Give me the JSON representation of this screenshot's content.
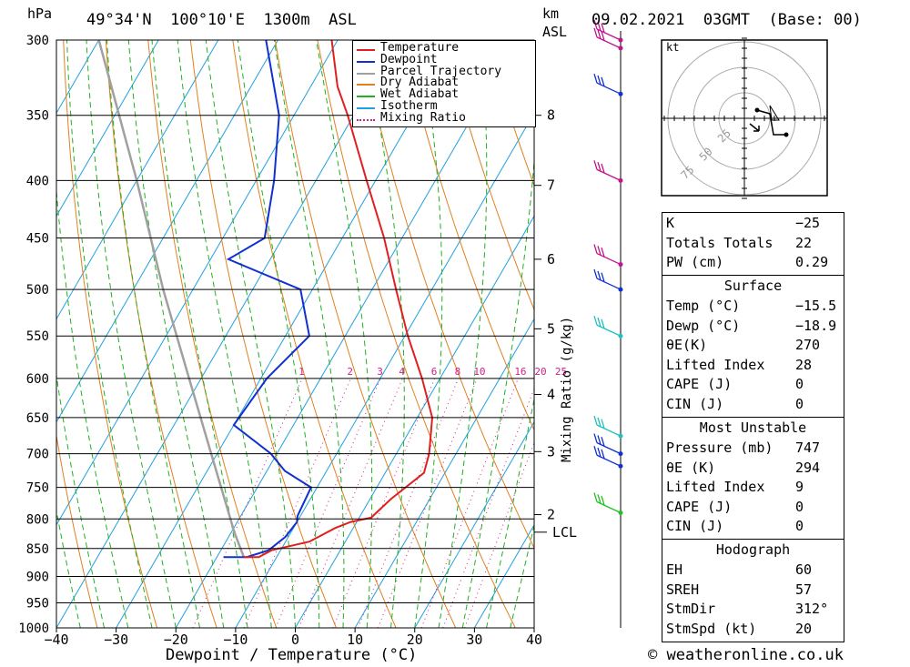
{
  "header": {
    "pressure_unit": "hPa",
    "location": "49°34'N  100°10'E  1300m  ASL",
    "km_label": "km",
    "asl_label": "ASL",
    "datetime": "09.02.2021  03GMT  (Base: 00)"
  },
  "footer": {
    "copyright": "© weatheronline.co.uk"
  },
  "colors": {
    "temperature": "#e02020",
    "dewpoint": "#1030d0",
    "parcel": "#a0a0a0",
    "dry_adiabat": "#e08020",
    "wet_adiabat": "#20b020",
    "isotherm": "#20a0e0",
    "mixing_ratio": "#d0208a",
    "wind_magenta": "#c0148c",
    "wind_blue": "#1030d0",
    "wind_cyan": "#20c0c0",
    "wind_green": "#20c020"
  },
  "chart_data": {
    "type": "skew-t",
    "xlabel": "Dewpoint / Temperature (°C)",
    "mixing_ratio_axis_label": "Mixing Ratio (g/kg)",
    "x_ticks": [
      -40,
      -30,
      -20,
      -10,
      0,
      10,
      20,
      30,
      40
    ],
    "xlim": [
      -40,
      40
    ],
    "pressure_levels": [
      300,
      350,
      400,
      450,
      500,
      550,
      600,
      650,
      700,
      750,
      800,
      850,
      900,
      950,
      1000
    ],
    "height_km_ticks": [
      {
        "km": "8",
        "p": 350
      },
      {
        "km": "7",
        "p": 404
      },
      {
        "km": "6",
        "p": 470
      },
      {
        "km": "5",
        "p": 542
      },
      {
        "km": "4",
        "p": 620
      },
      {
        "km": "3",
        "p": 697
      },
      {
        "km": "2",
        "p": 793
      }
    ],
    "lcl_label": "LCL",
    "lcl_pressure": 822,
    "mixing_ratio_labels": [
      "1",
      "2",
      "3",
      "4",
      "6",
      "8",
      "10",
      "16",
      "20",
      "25"
    ],
    "mixing_ratio_values": [
      1,
      2,
      3,
      4,
      6,
      8,
      10,
      16,
      20,
      25
    ],
    "legend": [
      "Temperature",
      "Dewpoint",
      "Parcel Trajectory",
      "Dry Adiabat",
      "Wet Adiabat",
      "Isotherm",
      "Mixing Ratio"
    ],
    "temperature_profile": [
      {
        "p": 865,
        "t": -15.5
      },
      {
        "p": 865,
        "t": -13.0
      },
      {
        "p": 853,
        "t": -11.5
      },
      {
        "p": 838,
        "t": -6.0
      },
      {
        "p": 815,
        "t": -3.0
      },
      {
        "p": 805,
        "t": -1.0
      },
      {
        "p": 798,
        "t": 2.0
      },
      {
        "p": 768,
        "t": 3.5
      },
      {
        "p": 728,
        "t": 6.5
      },
      {
        "p": 700,
        "t": 5.5
      },
      {
        "p": 650,
        "t": 2.5
      },
      {
        "p": 600,
        "t": -3.0
      },
      {
        "p": 550,
        "t": -9.5
      },
      {
        "p": 500,
        "t": -16.0
      },
      {
        "p": 450,
        "t": -23.0
      },
      {
        "p": 400,
        "t": -31.5
      },
      {
        "p": 350,
        "t": -41.0
      },
      {
        "p": 330,
        "t": -45.5
      },
      {
        "p": 300,
        "t": -51.0
      }
    ],
    "dewpoint_profile": [
      {
        "p": 865,
        "t": -18.9
      },
      {
        "p": 865,
        "t": -15.0
      },
      {
        "p": 853,
        "t": -12.0
      },
      {
        "p": 830,
        "t": -10.5
      },
      {
        "p": 805,
        "t": -10.0
      },
      {
        "p": 795,
        "t": -10.5
      },
      {
        "p": 750,
        "t": -11.0
      },
      {
        "p": 725,
        "t": -17.0
      },
      {
        "p": 700,
        "t": -21.0
      },
      {
        "p": 660,
        "t": -30.0
      },
      {
        "p": 600,
        "t": -29.0
      },
      {
        "p": 550,
        "t": -26.0
      },
      {
        "p": 500,
        "t": -32.0
      },
      {
        "p": 470,
        "t": -47.0
      },
      {
        "p": 450,
        "t": -43.0
      },
      {
        "p": 400,
        "t": -47.0
      },
      {
        "p": 350,
        "t": -52.5
      },
      {
        "p": 300,
        "t": -62.0
      }
    ],
    "parcel_profile": [
      {
        "p": 865,
        "t": -15.5
      },
      {
        "p": 822,
        "t": -19.5
      },
      {
        "p": 700,
        "t": -31.0
      },
      {
        "p": 600,
        "t": -42.0
      },
      {
        "p": 500,
        "t": -55.0
      },
      {
        "p": 400,
        "t": -70.0
      },
      {
        "p": 300,
        "t": -90.0
      }
    ],
    "wind_barbs": [
      {
        "p": 300,
        "color": "#c0148c"
      },
      {
        "p": 305,
        "color": "#c0148c"
      },
      {
        "p": 335,
        "color": "#1030d0"
      },
      {
        "p": 400,
        "color": "#c0148c"
      },
      {
        "p": 475,
        "color": "#c0148c"
      },
      {
        "p": 500,
        "color": "#1030d0"
      },
      {
        "p": 550,
        "color": "#20c0c0"
      },
      {
        "p": 675,
        "color": "#20c0c0"
      },
      {
        "p": 700,
        "color": "#1030d0"
      },
      {
        "p": 718,
        "color": "#1030d0"
      },
      {
        "p": 790,
        "color": "#20c020"
      }
    ],
    "hodograph": {
      "unit_label": "kt",
      "ring_labels": [
        "25",
        "50",
        "75"
      ]
    }
  },
  "indices": {
    "top": [
      {
        "label": "K",
        "value": "-25"
      },
      {
        "label": "Totals Totals",
        "value": "22"
      },
      {
        "label": "PW (cm)",
        "value": "0.29"
      }
    ],
    "surface": {
      "title": "Surface",
      "rows": [
        {
          "label": "Temp (°C)",
          "value": "-15.5"
        },
        {
          "label": "Dewp (°C)",
          "value": "-18.9"
        },
        {
          "label": "θE(K)",
          "value": "270"
        },
        {
          "label": "Lifted Index",
          "value": "28"
        },
        {
          "label": "CAPE (J)",
          "value": "0"
        },
        {
          "label": "CIN (J)",
          "value": "0"
        }
      ]
    },
    "most_unstable": {
      "title": "Most Unstable",
      "rows": [
        {
          "label": "Pressure (mb)",
          "value": "747"
        },
        {
          "label": "θE (K)",
          "value": "294"
        },
        {
          "label": "Lifted Index",
          "value": "9"
        },
        {
          "label": "CAPE (J)",
          "value": "0"
        },
        {
          "label": "CIN (J)",
          "value": "0"
        }
      ]
    },
    "hodograph": {
      "title": "Hodograph",
      "rows": [
        {
          "label": "EH",
          "value": "60"
        },
        {
          "label": "SREH",
          "value": "57"
        },
        {
          "label": "StmDir",
          "value": "312°"
        },
        {
          "label": "StmSpd (kt)",
          "value": "20"
        }
      ]
    }
  }
}
